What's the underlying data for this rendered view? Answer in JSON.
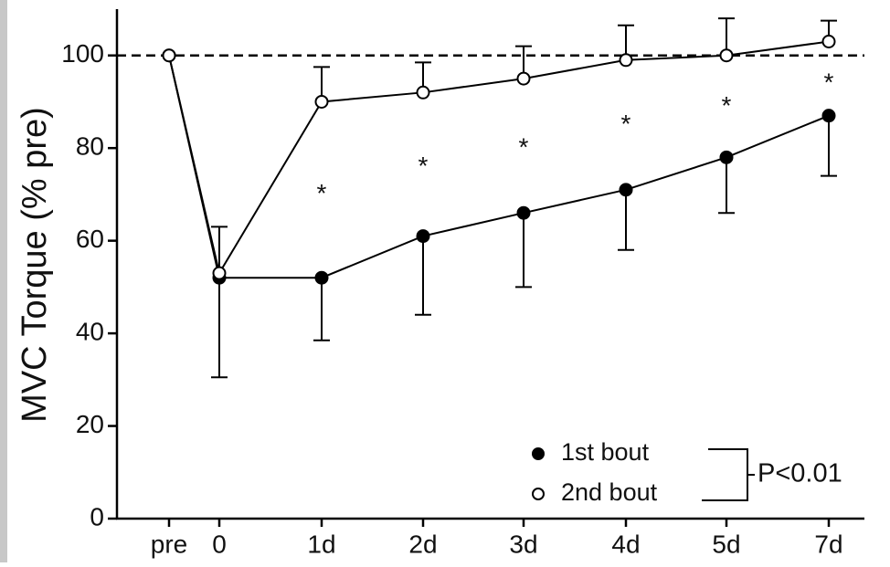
{
  "chart_data": {
    "type": "line",
    "y_label": "MVC Torque (% pre)",
    "categories": [
      "pre",
      "0",
      "1d",
      "2d",
      "3d",
      "4d",
      "5d",
      "7d"
    ],
    "series": [
      {
        "name": "1st bout",
        "color": "#000000",
        "marker": "filled",
        "error_direction": "down",
        "values": [
          100,
          52,
          52,
          61,
          66,
          71,
          78,
          87
        ],
        "errors": [
          null,
          21.5,
          13.5,
          17,
          16,
          13,
          12,
          13
        ]
      },
      {
        "name": "2nd bout",
        "color": "#000000",
        "marker": "open",
        "error_direction": "up",
        "values": [
          100,
          53,
          90,
          92,
          95,
          99,
          100,
          103
        ],
        "errors": [
          null,
          10,
          7.5,
          6.5,
          7,
          7.5,
          8,
          4.5
        ]
      }
    ],
    "reference_line": 100,
    "annotations": [
      {
        "text": "*",
        "category": "1d",
        "y": 71
      },
      {
        "text": "*",
        "category": "2d",
        "y": 77
      },
      {
        "text": "*",
        "category": "3d",
        "y": 81
      },
      {
        "text": "*",
        "category": "4d",
        "y": 86
      },
      {
        "text": "*",
        "category": "5d",
        "y": 90
      },
      {
        "text": "*",
        "category": "7d",
        "y": 95
      }
    ],
    "legend_note": "P<0.01",
    "ylim": [
      0,
      110
    ],
    "yticks": [
      0,
      20,
      40,
      60,
      80,
      100
    ]
  }
}
